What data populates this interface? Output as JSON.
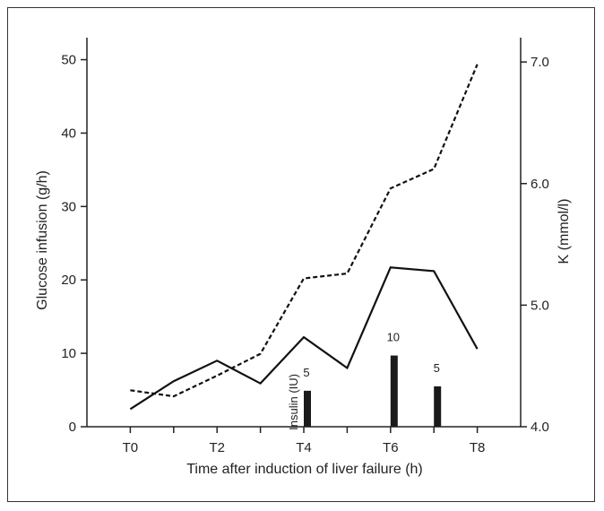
{
  "chart_data": {
    "type": "line",
    "title": "",
    "xlabel": "Time after induction of liver failure (h)",
    "ylabel_left": "Glucose infusion (g/h)",
    "ylabel_right": "K (mmol/l)",
    "x_tick_labels": [
      "T0",
      "T2",
      "T4",
      "T6",
      "T8"
    ],
    "x_tick_positions": [
      0,
      2,
      4,
      6,
      8
    ],
    "xlim": [
      -1,
      9
    ],
    "ylim_left": [
      0,
      53
    ],
    "ylim_right": [
      4.0,
      7.2
    ],
    "y_ticks_left": [
      "0",
      "10",
      "20",
      "30",
      "40",
      "50"
    ],
    "y_ticks_right": [
      "4.0",
      "5.0",
      "6.0",
      "7.0"
    ],
    "grid": false,
    "series": [
      {
        "style": "solid",
        "axis": "left",
        "x": [
          0,
          1,
          2,
          3,
          4,
          5,
          6,
          7,
          8
        ],
        "values": [
          2.4,
          6.2,
          9,
          5.9,
          12.2,
          8,
          21.7,
          21.2,
          10.6
        ]
      },
      {
        "style": "dashed",
        "axis": "right",
        "x": [
          0,
          1,
          2,
          3,
          4,
          5,
          6,
          7,
          8
        ],
        "values": [
          4.3,
          4.25,
          4.42,
          4.6,
          5.22,
          5.26,
          5.96,
          6.12,
          6.98
        ]
      }
    ],
    "bars": {
      "label": "Insulin (IU)",
      "x": [
        4,
        6,
        7
      ],
      "values": [
        5,
        10,
        5
      ],
      "heights_left_units": [
        4.9,
        9.7,
        5.5
      ]
    }
  }
}
